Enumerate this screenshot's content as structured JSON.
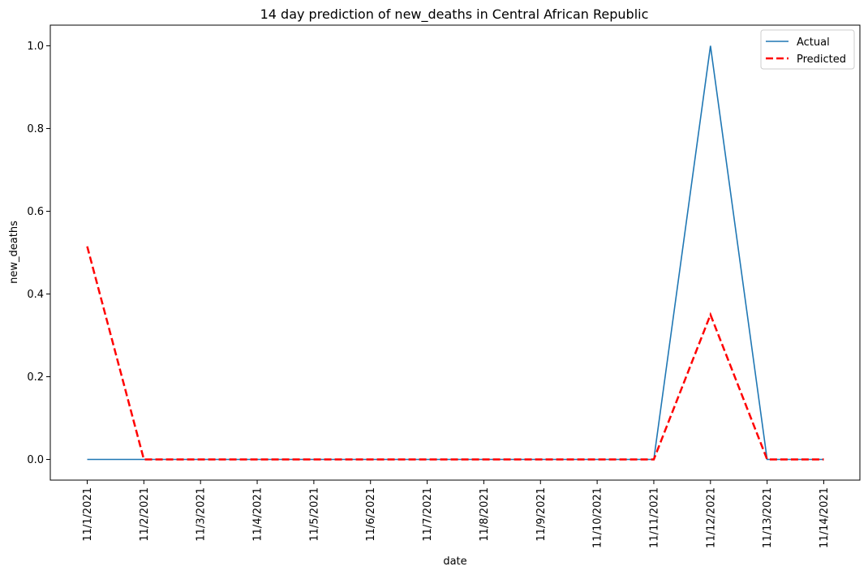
{
  "chart_data": {
    "type": "line",
    "title": "14 day prediction of new_deaths in Central African Republic",
    "xlabel": "date",
    "ylabel": "new_deaths",
    "categories": [
      "11/1/2021",
      "11/2/2021",
      "11/3/2021",
      "11/4/2021",
      "11/5/2021",
      "11/6/2021",
      "11/7/2021",
      "11/8/2021",
      "11/9/2021",
      "11/10/2021",
      "11/11/2021",
      "11/12/2021",
      "11/13/2021",
      "11/14/2021"
    ],
    "ylim": [
      -0.05,
      1.05
    ],
    "yticks": [
      0.0,
      0.2,
      0.4,
      0.6,
      0.8,
      1.0
    ],
    "ytick_labels": [
      "0.0",
      "0.2",
      "0.4",
      "0.6",
      "0.8",
      "1.0"
    ],
    "grid": false,
    "legend_position": "top-right",
    "series": [
      {
        "name": "Actual",
        "color": "#1f77b4",
        "style": "solid",
        "values": [
          0,
          0,
          0,
          0,
          0,
          0,
          0,
          0,
          0,
          0,
          0,
          1.0,
          0,
          0
        ]
      },
      {
        "name": "Predicted",
        "color": "#ff0000",
        "style": "dashed",
        "values": [
          0.515,
          0,
          0,
          0,
          0,
          0,
          0,
          0,
          0,
          0,
          0,
          0.35,
          0,
          0
        ]
      }
    ]
  }
}
